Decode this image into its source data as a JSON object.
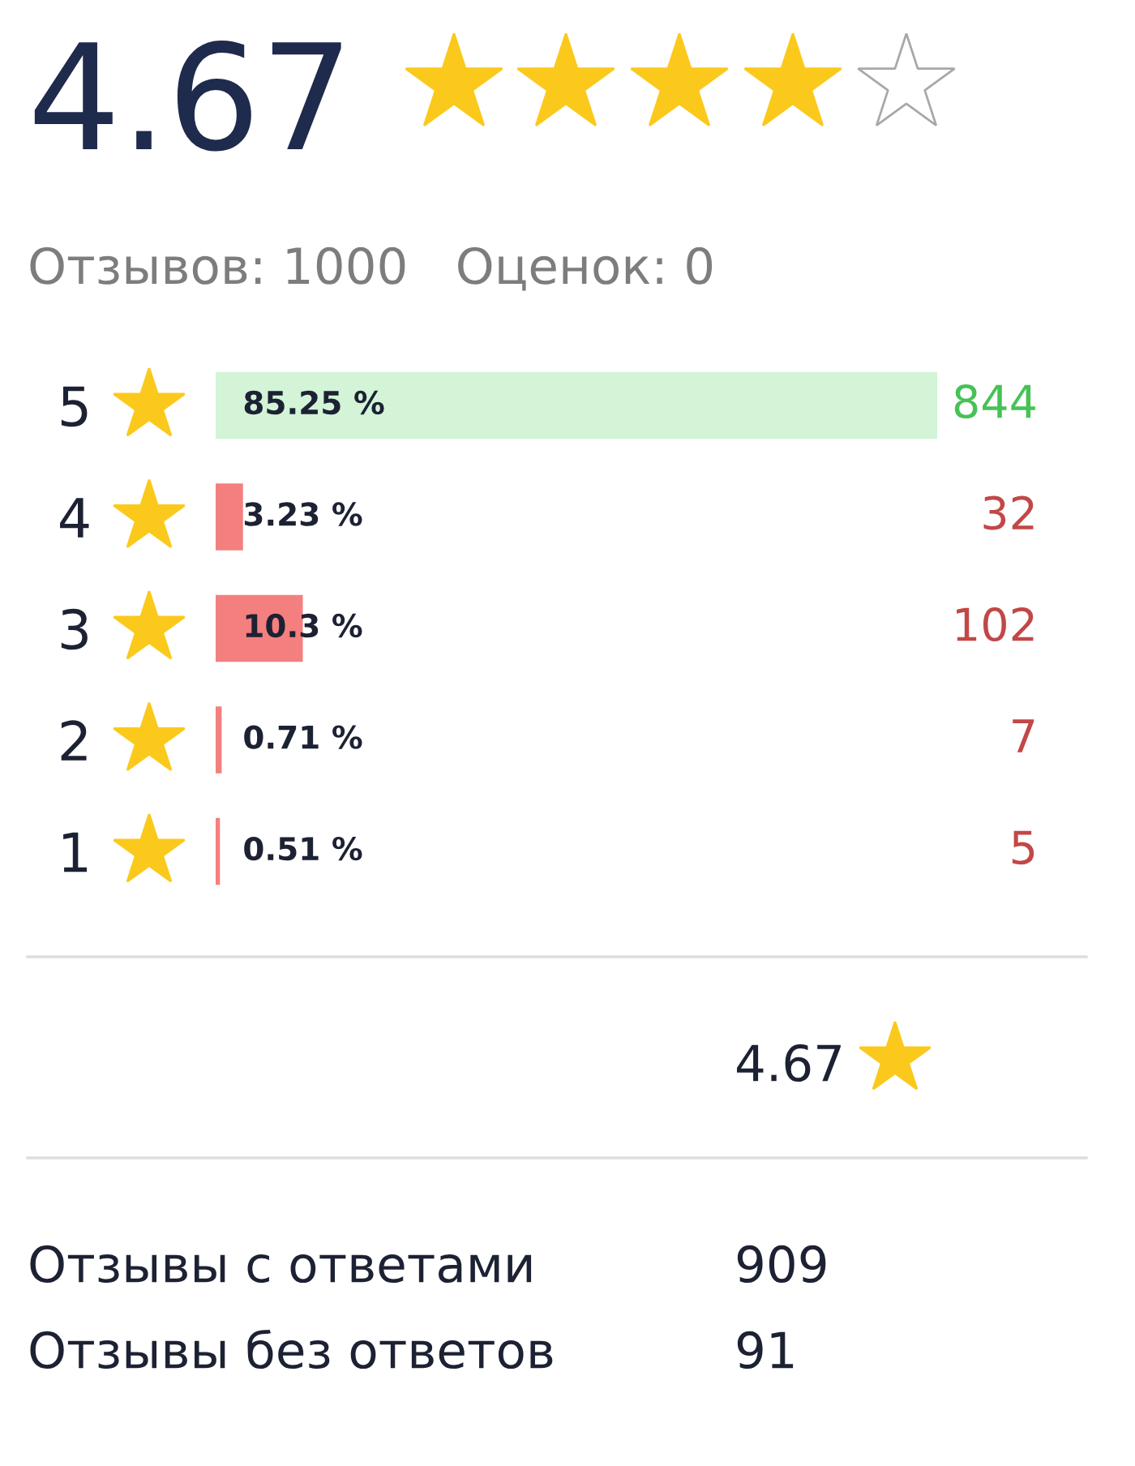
{
  "chart_data": {
    "type": "bar",
    "orientation": "horizontal",
    "title": "4.67",
    "subtitle": "Отзывов: 1000   Оценок: 0",
    "categories": [
      "5",
      "4",
      "3",
      "2",
      "1"
    ],
    "values": [
      85.25,
      3.23,
      10.3,
      0.71,
      0.51
    ],
    "value_labels": [
      "85.25 %",
      "3.23 %",
      "10.3 %",
      "0.71 %",
      "0.51 %"
    ],
    "colors": [
      "#d3f4d7",
      "#f47f7f",
      "#f47f7f",
      "#f47f7f",
      "#f47f7f"
    ],
    "tick_labels": "y",
    "annotations": [
      "844",
      "32",
      "102",
      "7",
      "5",
      "4.67",
      "Отзывы с ответами",
      "909",
      "Отзывы без ответов",
      "91"
    ]
  }
}
